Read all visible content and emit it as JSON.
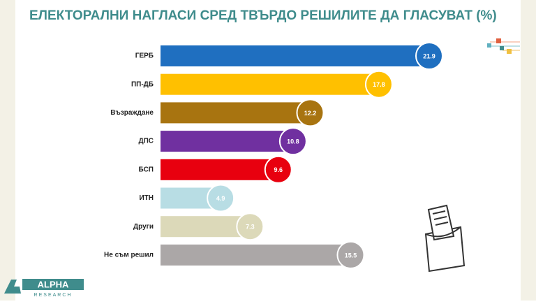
{
  "chart_data": {
    "type": "bar",
    "orientation": "horizontal",
    "title": "ЕЛЕКТОРАЛНИ НАГЛАСИ СРЕД ТВЪРДО РЕШИЛИТЕ ДА ГЛАСУВАТ (%)",
    "categories": [
      "ГЕРБ",
      "ПП-ДБ",
      "Възраждане",
      "ДПС",
      "БСП",
      "ИТН",
      "Други",
      "Не съм решил"
    ],
    "values": [
      21.9,
      17.8,
      12.2,
      10.8,
      9.6,
      4.9,
      7.3,
      15.5
    ],
    "colors": [
      "#1f6fc0",
      "#ffc000",
      "#a87410",
      "#7030a0",
      "#e8000f",
      "#b8dde4",
      "#dcd9b9",
      "#aba7a7"
    ]
  },
  "logo": {
    "name": "ALPHA",
    "subtitle": "RESEARCH"
  }
}
